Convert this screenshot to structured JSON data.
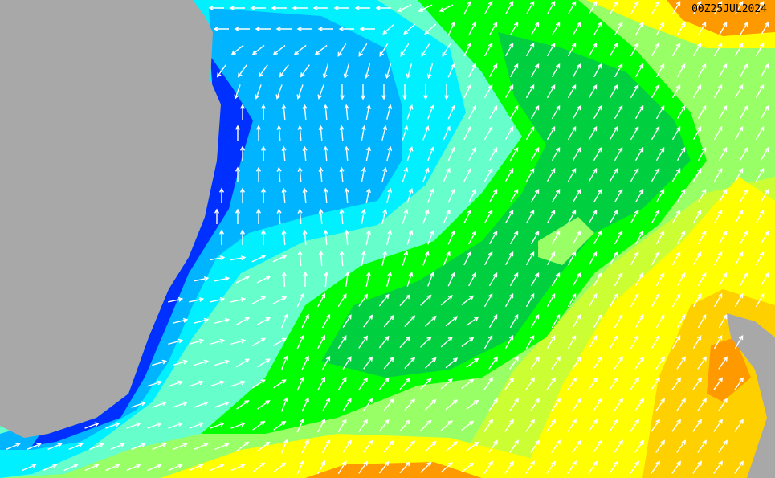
{
  "map": {
    "timestamp": "00Z25JUL2024",
    "colors": {
      "land": "#a8a8a8",
      "deep_blue": "#0030ff",
      "blue": "#00b4ff",
      "cyan": "#00f0ff",
      "aqua": "#66ffcc",
      "light_green": "#99ff66",
      "green": "#00ff00",
      "dark_green": "#00d040",
      "yellow_green": "#ccff33",
      "yellow": "#ffff00",
      "gold": "#ffd000",
      "orange": "#ff9900",
      "arrow": "#ffffff"
    },
    "arrow_icon": "wave-direction-arrow"
  }
}
